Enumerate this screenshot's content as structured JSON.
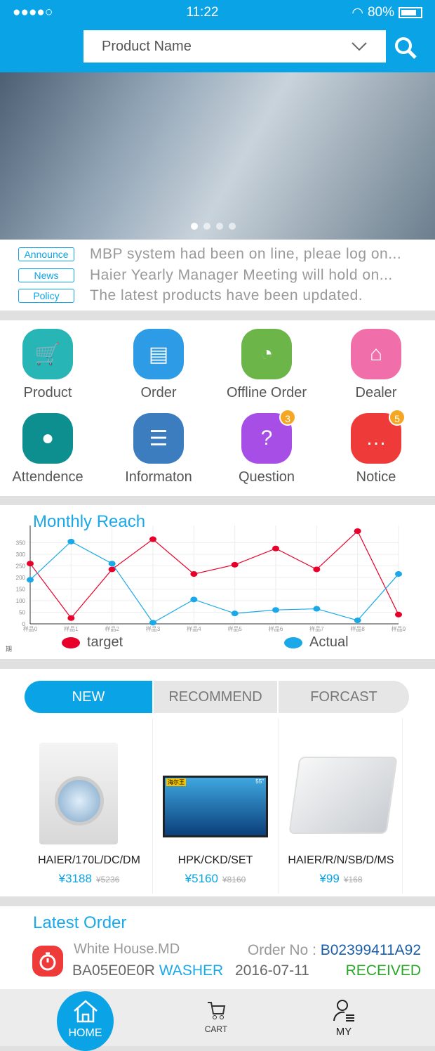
{
  "status_bar": {
    "signal": "●●●●○",
    "time": "11:22",
    "battery": "80%"
  },
  "search": {
    "placeholder": "Product Name"
  },
  "banner": {
    "slides": 4,
    "active_slide": 0
  },
  "news": [
    {
      "tag": "Announce",
      "text": "MBP system had been on line, pleae log on..."
    },
    {
      "tag": "News",
      "text": "Haier Yearly Manager Meeting will hold on..."
    },
    {
      "tag": "Policy",
      "text": "The latest products have been updated."
    }
  ],
  "menu": [
    {
      "label": "Product",
      "icon": "cart-icon",
      "color": "#28b5b5"
    },
    {
      "label": "Order",
      "icon": "document-icon",
      "color": "#2d9be6"
    },
    {
      "label": "Offline Order",
      "icon": "pie-chart-icon",
      "color": "#6cb548"
    },
    {
      "label": "Dealer",
      "icon": "store-icon",
      "color": "#f06eaa"
    },
    {
      "label": "Attendence",
      "icon": "location-pin-icon",
      "color": "#0e8f8f"
    },
    {
      "label": "Informaton",
      "icon": "user-list-icon",
      "color": "#3b7dbf"
    },
    {
      "label": "Question",
      "icon": "question-icon",
      "color": "#a64ee6",
      "badge": "3"
    },
    {
      "label": "Notice",
      "icon": "chat-icon",
      "color": "#ef3a3a",
      "badge": "5"
    }
  ],
  "chart_data": {
    "type": "line",
    "title": "Monthly Reach",
    "categories": [
      "样品0",
      "样品1",
      "样品2",
      "样品3",
      "样品4",
      "样品5",
      "样品6",
      "样品7",
      "样品8",
      "样品9"
    ],
    "yticks": [
      0,
      50,
      100,
      150,
      200,
      250,
      300,
      350
    ],
    "ylim": [
      0,
      400
    ],
    "grid": true,
    "legend": "bottom",
    "series": [
      {
        "name": "target",
        "color": "#e8002a",
        "values": [
          260,
          25,
          235,
          365,
          215,
          255,
          325,
          235,
          400,
          40
        ]
      },
      {
        "name": "Actual",
        "color": "#1aa8e8",
        "values": [
          190,
          355,
          260,
          5,
          105,
          45,
          60,
          65,
          15,
          215
        ]
      }
    ],
    "footnote": "期"
  },
  "tabs": [
    {
      "label": "NEW",
      "active": true
    },
    {
      "label": "RECOMMEND"
    },
    {
      "label": "FORCAST"
    }
  ],
  "products": [
    {
      "name": "HAIER/170L/DC/DM",
      "price": "¥3188",
      "old": "¥5236",
      "icon": "washer-image"
    },
    {
      "name": "HPK/CKD/SET",
      "price": "¥5160",
      "old": "¥8160",
      "icon": "tv-image",
      "tv_brand": "海尔王",
      "tv_size": "55\""
    },
    {
      "name": "HAIER/R/N/SB/D/MS",
      "price": "¥99",
      "old": "¥168",
      "icon": "scale-image"
    }
  ],
  "latest_order": {
    "title": "Latest Order",
    "shop": "White House.MD",
    "code": "BA05E0E0R",
    "type": "WASHER",
    "order_label": "Order No :",
    "order_no": "B02399411A92",
    "date": "2016-07-11",
    "status": "RECEIVED"
  },
  "nav": [
    {
      "label": "HOME",
      "active": true
    },
    {
      "label": "CART"
    },
    {
      "label": "MY"
    }
  ]
}
